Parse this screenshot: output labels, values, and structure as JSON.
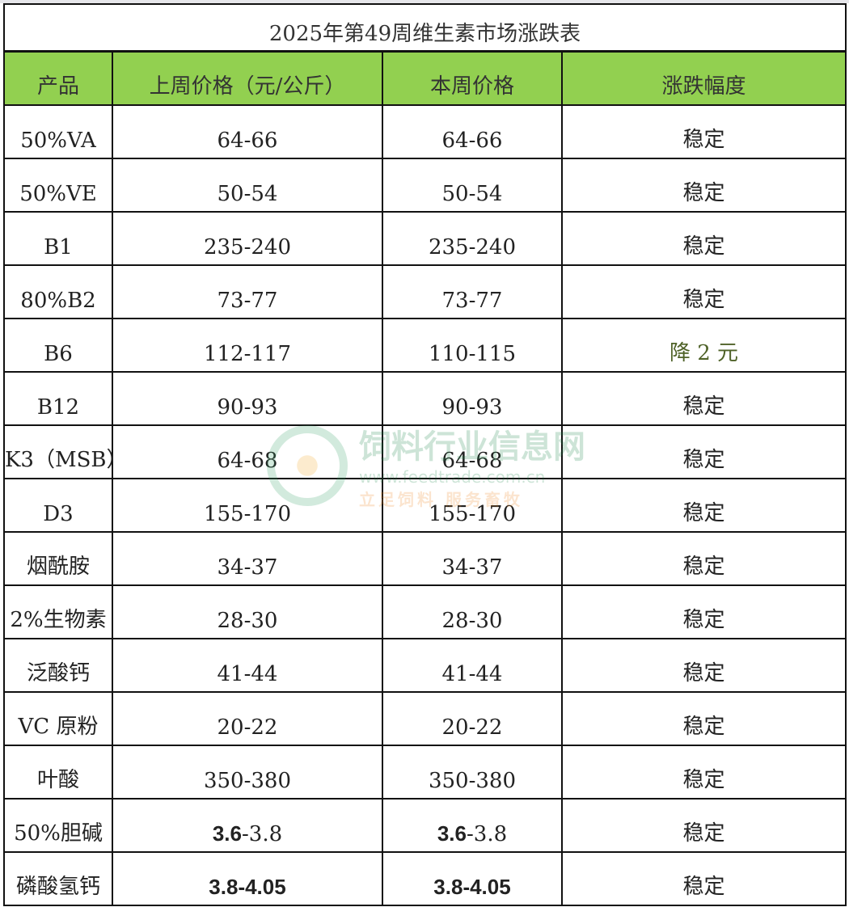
{
  "title": "2025年第49周维生素市场涨跌表",
  "headers": [
    "产品",
    "上周价格（元/公斤）",
    "本周价格",
    "涨跌幅度"
  ],
  "rows": [
    {
      "product": "50%VA",
      "last": "64-66",
      "this": "64-66",
      "change": "稳定"
    },
    {
      "product": "50%VE",
      "last": "50-54",
      "this": "50-54",
      "change": "稳定"
    },
    {
      "product": "B1",
      "last": "235-240",
      "this": "235-240",
      "change": "稳定"
    },
    {
      "product": "80%B2",
      "last": "73-77",
      "this": "73-77",
      "change": "稳定"
    },
    {
      "product": "B6",
      "last": "112-117",
      "this": "110-115",
      "change": "降 2 元",
      "change_color": "#4f6228"
    },
    {
      "product": "B12",
      "last": "90-93",
      "this": "90-93",
      "change": "稳定"
    },
    {
      "product": "K3（MSB）",
      "last": "64-68",
      "this": "64-68",
      "change": "稳定"
    },
    {
      "product": "D3",
      "last": "155-170",
      "this": "155-170",
      "change": "稳定"
    },
    {
      "product": "烟酰胺",
      "last": "34-37",
      "this": "34-37",
      "change": "稳定"
    },
    {
      "product": "2%生物素",
      "last": "28-30",
      "this": "28-30",
      "change": "稳定"
    },
    {
      "product": "泛酸钙",
      "last": "41-44",
      "this": "41-44",
      "change": "稳定"
    },
    {
      "product": "VC 原粉",
      "last": "20-22",
      "this": "20-22",
      "change": "稳定"
    },
    {
      "product": "叶酸",
      "last": "350-380",
      "this": "350-380",
      "change": "稳定"
    },
    {
      "product": "50%胆碱",
      "last_bold": "3.6",
      "last": "-3.8",
      "this_bold": "3.6",
      "this": "-3.8",
      "change": "稳定"
    },
    {
      "product": "磷酸氢钙",
      "last_bold": "3.8-4.05",
      "last": "",
      "this_bold": "3.8-4.05",
      "this": "",
      "change": "稳定"
    }
  ],
  "header_color": "#92d050",
  "watermark": {
    "name": "饲料行业信息网",
    "url": "www.feedtrade.com.cn",
    "slogan": "立足饲料 服务畜牧"
  }
}
